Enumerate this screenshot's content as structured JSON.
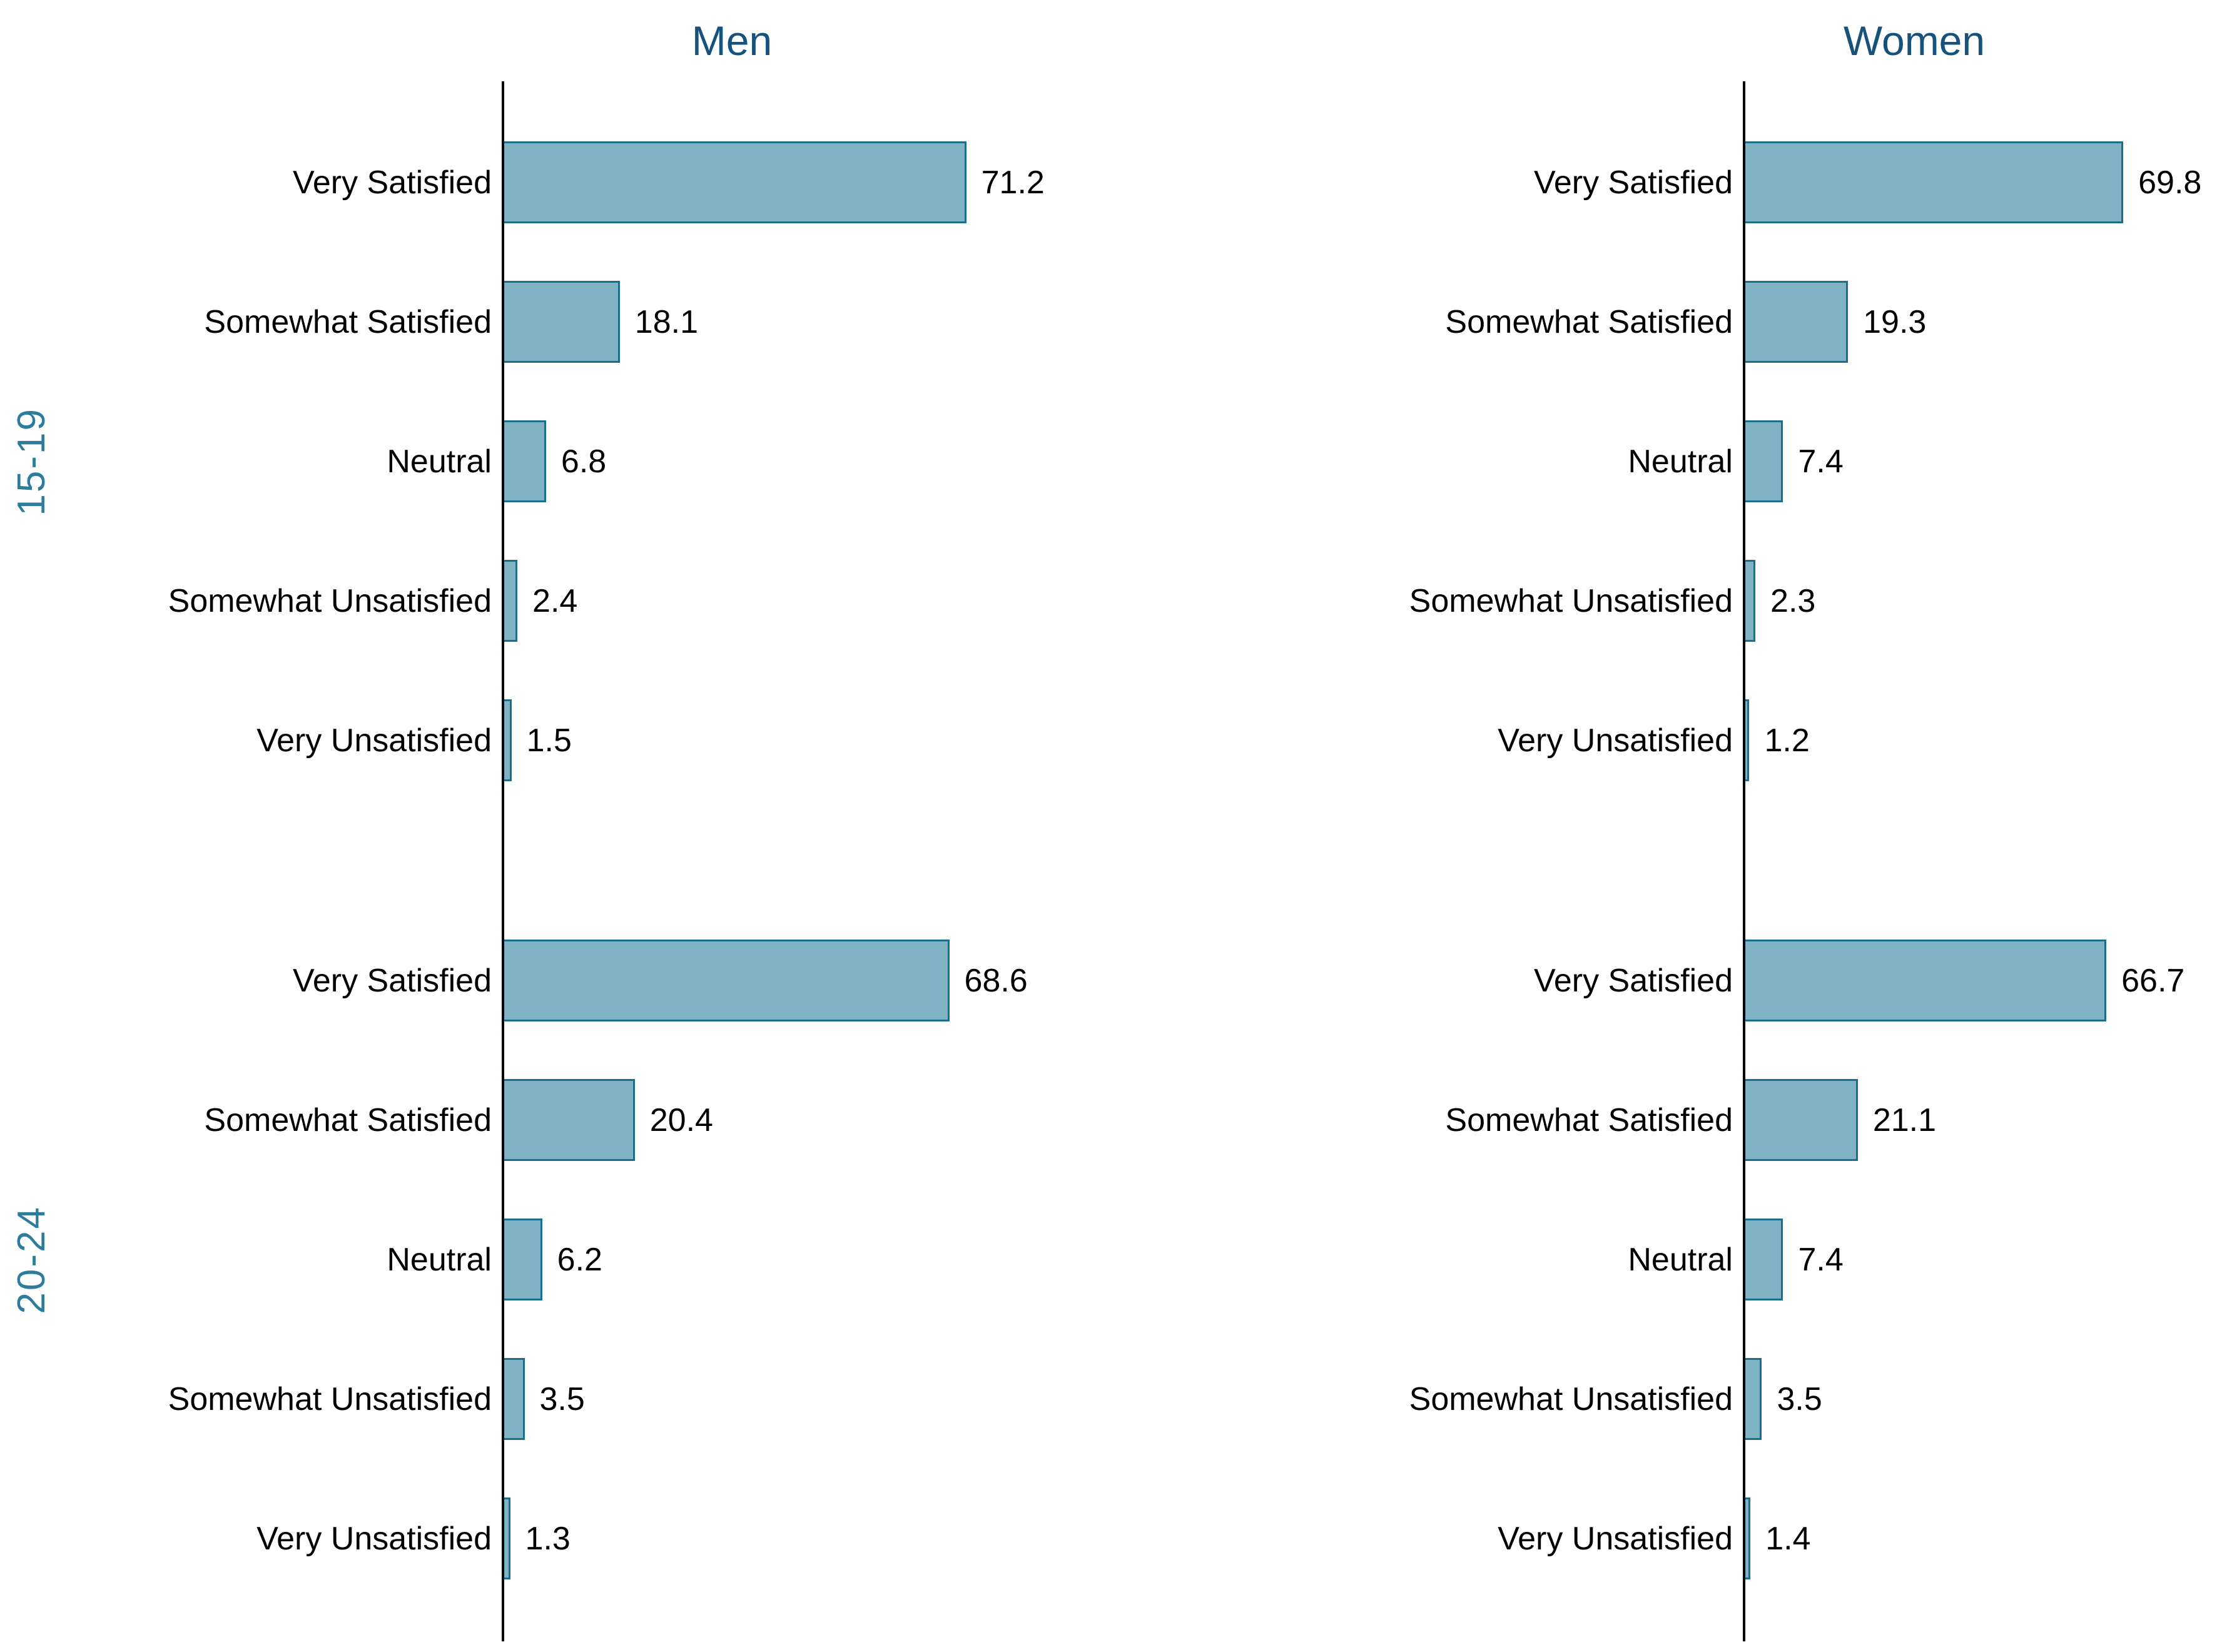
{
  "chart_data": {
    "type": "bar",
    "orientation": "horizontal",
    "facet_cols": [
      "Men",
      "Women"
    ],
    "facet_rows": [
      "15-19",
      "20-24"
    ],
    "categories": [
      "Very Satisfied",
      "Somewhat Satisfied",
      "Neutral",
      "Somewhat Unsatisfied",
      "Very Unsatisfied"
    ],
    "panels": [
      {
        "row": "15-19",
        "col": "Men",
        "values": [
          71.2,
          18.1,
          6.8,
          2.4,
          1.5
        ]
      },
      {
        "row": "15-19",
        "col": "Women",
        "values": [
          69.8,
          19.3,
          7.4,
          2.3,
          1.2
        ]
      },
      {
        "row": "20-24",
        "col": "Men",
        "values": [
          68.6,
          20.4,
          6.2,
          3.5,
          1.3
        ]
      },
      {
        "row": "20-24",
        "col": "Women",
        "values": [
          66.7,
          21.1,
          7.4,
          3.5,
          1.4
        ]
      }
    ],
    "value_label_decimals": 1,
    "x_scale_max": {
      "Men": 93,
      "Women": 87
    },
    "grid": "off",
    "legend": "none",
    "colors": {
      "bar_fill": "#7FB2C2",
      "bar_border": "#1A6E8B",
      "axis": "#000000",
      "col_title_text": "#17527C",
      "facet_label_text": "#2E7C9C",
      "category_text": "#000000",
      "value_text": "#000000",
      "background": "#FFFFFF"
    }
  }
}
